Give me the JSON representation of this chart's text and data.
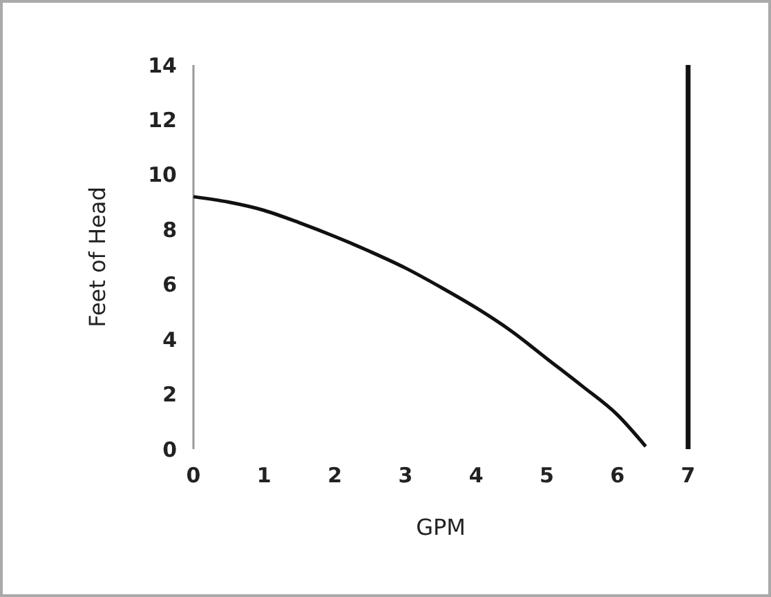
{
  "chart_data": {
    "type": "line",
    "xlabel": "GPM",
    "ylabel": "Feet of Head",
    "x": [
      0,
      0.5,
      1,
      1.5,
      2,
      2.5,
      3,
      3.5,
      4,
      4.5,
      5,
      5.5,
      6,
      6.4
    ],
    "series": [
      {
        "color": "#111111",
        "values": [
          9.2,
          9.0,
          8.7,
          8.25,
          7.75,
          7.2,
          6.6,
          5.9,
          5.15,
          4.3,
          3.3,
          2.3,
          1.25,
          0.1
        ]
      }
    ],
    "xlim": [
      0,
      7
    ],
    "xticks": [
      0,
      1,
      2,
      3,
      4,
      5,
      6,
      7
    ],
    "ylim": [
      0,
      14
    ],
    "yticks": [
      0,
      2,
      4,
      6,
      8,
      10,
      12,
      14
    ],
    "ref_lines": [
      {
        "axis": "x",
        "value": 7,
        "color": "#111111"
      }
    ],
    "grid": false,
    "marker": "none",
    "line_style": "solid"
  }
}
